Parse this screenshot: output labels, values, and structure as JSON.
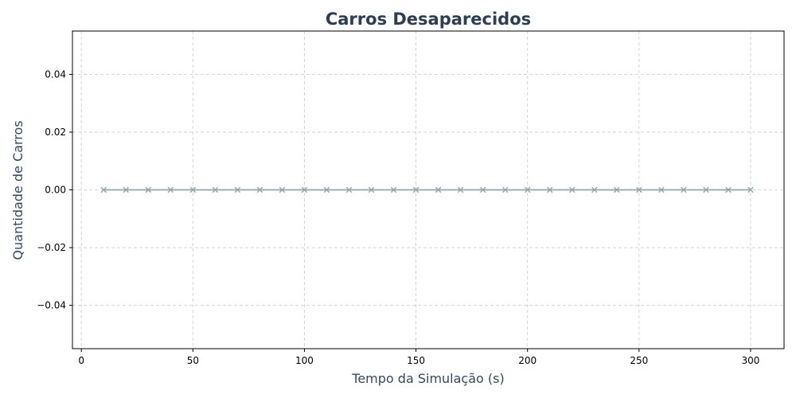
{
  "chart_data": {
    "type": "line",
    "title": "Carros Desaparecidos",
    "xlabel": "Tempo da Simulação (s)",
    "ylabel": "Quantidade de Carros",
    "xlim": [
      -4,
      315
    ],
    "ylim": [
      -0.055,
      0.055
    ],
    "x_ticks": [
      0,
      50,
      100,
      150,
      200,
      250,
      300
    ],
    "x_tick_labels": [
      "0",
      "50",
      "100",
      "150",
      "200",
      "250",
      "300"
    ],
    "y_ticks": [
      -0.04,
      -0.02,
      0.0,
      0.02,
      0.04
    ],
    "y_tick_labels": [
      "−0.04",
      "−0.02",
      "0.00",
      "0.02",
      "0.04"
    ],
    "grid": true,
    "x": [
      10,
      20,
      30,
      40,
      50,
      60,
      70,
      80,
      90,
      100,
      110,
      120,
      130,
      140,
      150,
      160,
      170,
      180,
      190,
      200,
      210,
      220,
      230,
      240,
      250,
      260,
      270,
      280,
      290,
      300
    ],
    "series": [
      {
        "values": [
          0,
          0,
          0,
          0,
          0,
          0,
          0,
          0,
          0,
          0,
          0,
          0,
          0,
          0,
          0,
          0,
          0,
          0,
          0,
          0,
          0,
          0,
          0,
          0,
          0,
          0,
          0,
          0,
          0,
          0
        ],
        "color": "#95a5a6",
        "marker": "x"
      }
    ],
    "colors": {
      "title": "#2c3e50",
      "axis_label": "#34495e",
      "grid": "#cccccc",
      "ticks": "#000000"
    }
  }
}
